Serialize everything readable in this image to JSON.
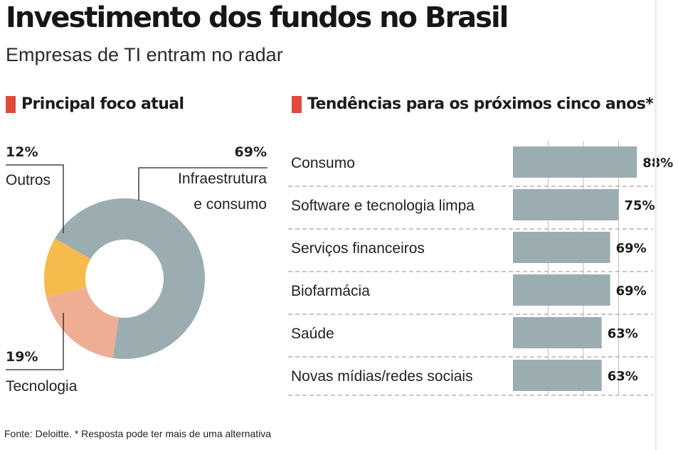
{
  "title": "Investimento dos fundos no Brasil",
  "subtitle": "Empresas de TI entram no radar",
  "footer": "Fonte: Deloitte. * Resposta pode ter mais de uma alternativa",
  "colors": {
    "accent": "#e04a3c",
    "slate": "#9cadb1",
    "yellow": "#f6bb4c",
    "salmon": "#efae94"
  },
  "chart_data": [
    {
      "type": "pie",
      "title": "Principal foco atual",
      "slices": [
        {
          "pct_label": "69%",
          "label_line1": "Infraestrutura",
          "label_line2": "e consumo",
          "value": 69,
          "color": "#9cadb1"
        },
        {
          "pct_label": "19%",
          "label_line1": "Tecnologia",
          "label_line2": "",
          "value": 19,
          "color": "#efae94"
        },
        {
          "pct_label": "12%",
          "label_line1": "Outros",
          "label_line2": "",
          "value": 12,
          "color": "#f6bb4c"
        }
      ]
    },
    {
      "type": "bar",
      "title": "Tendências para os próximos cinco anos*",
      "categories": [
        "Consumo",
        "Software e tecnologia limpa",
        "Serviços financeiros",
        "Biofarmácia",
        "Saúde",
        "Novas mídias/redes sociais"
      ],
      "values": [
        88,
        75,
        69,
        69,
        63,
        63
      ],
      "value_labels": [
        "88%",
        "75%",
        "69%",
        "69%",
        "63%",
        "63%"
      ],
      "xlim": [
        0,
        100
      ],
      "grid": true,
      "bar_color": "#9cadb1"
    }
  ]
}
